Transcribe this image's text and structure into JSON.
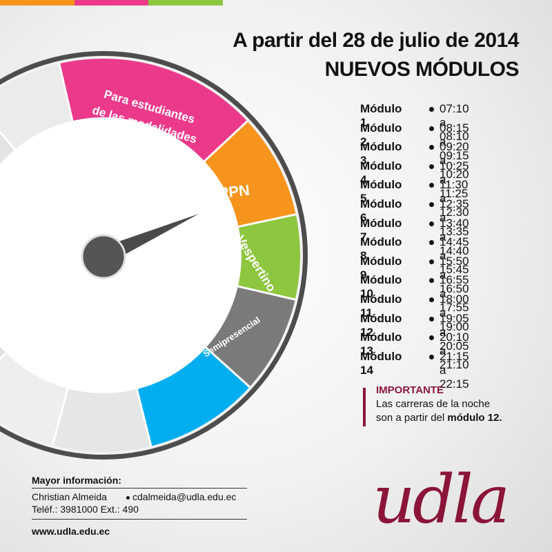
{
  "header": {
    "line1": "A partir del 28 de julio de 2014",
    "line2": "NUEVOS MÓDULOS"
  },
  "modules": [
    {
      "name": "Módulo 1",
      "time": "07:10 a 08:10"
    },
    {
      "name": "Módulo 2",
      "time": "08:15 a 09:15"
    },
    {
      "name": "Módulo 3",
      "time": "09:20 a 10:20"
    },
    {
      "name": "Módulo 4",
      "time": "10:25 a 11:25"
    },
    {
      "name": "Módulo 5",
      "time": "11:30 a 12:30"
    },
    {
      "name": "Módulo 6",
      "time": "12:35 a 13:35"
    },
    {
      "name": "Módulo 7",
      "time": "13:40 a 14:40"
    },
    {
      "name": "Módulo 8",
      "time": "14:45 a 15:45"
    },
    {
      "name": "Módulo 9",
      "time": "15:50 a 16:50"
    },
    {
      "name": "Módulo 10",
      "time": "16:55 a 17:55"
    },
    {
      "name": "Módulo 11",
      "time": "18:00 a 19:00"
    },
    {
      "name": "Módulo 12",
      "time": "19:05 a 20:05"
    },
    {
      "name": "Módulo 13",
      "time": "20:10 a 21:10"
    },
    {
      "name": "Módulo 14",
      "time": "21:15 a 22:15"
    }
  ],
  "important": {
    "heading": "IMPORTANTE",
    "line1": "Las carreras de la noche",
    "line2": "son a partir del",
    "line2_bold": "módulo 12."
  },
  "dial": {
    "pink_line1": "Para estudiantes",
    "pink_line2": "de las modalidades",
    "orange": "PPN",
    "green": "Vespertino",
    "gray": "Semipresencial"
  },
  "contact": {
    "heading": "Mayor información:",
    "name": "Christian Almeida",
    "email": "cdalmeida@udla.edu.ec",
    "phone": "Teléf.: 3981000 Ext.: 490",
    "web": "www.udla.edu.ec"
  },
  "logo": "udla"
}
